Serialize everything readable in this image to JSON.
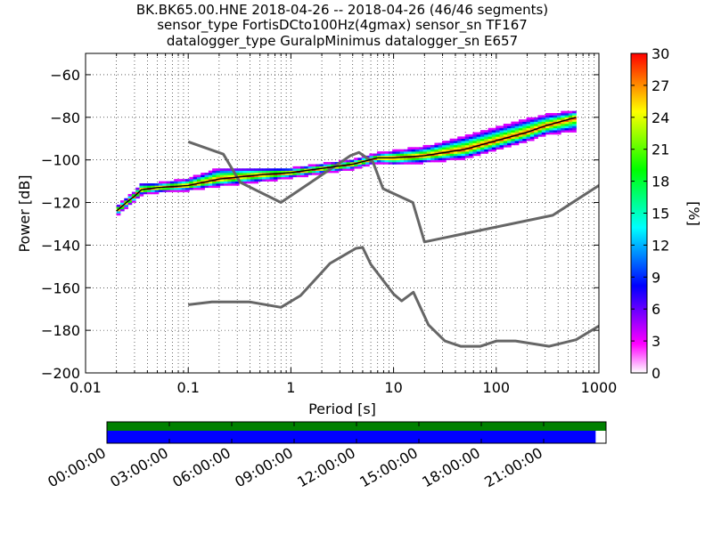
{
  "chart_data": [
    {
      "type": "heatmap",
      "title_lines": [
        "BK.BK65.00.HNE   2018-04-26 -- 2018-04-26  (46/46 segments)",
        "sensor_type FortisDCto100Hz(4gmax) sensor_sn TF167",
        "datalogger_type GuralpMinimus datalogger_sn E657"
      ],
      "xlabel": "Period [s]",
      "ylabel": "Power [dB]",
      "x_scale": "log",
      "xlim": [
        0.01,
        1000
      ],
      "ylim": [
        -200,
        -50
      ],
      "x_ticks": [
        {
          "value": 0.01,
          "label": "0.01"
        },
        {
          "value": 0.1,
          "label": "0.1"
        },
        {
          "value": 1,
          "label": "1"
        },
        {
          "value": 10,
          "label": "10"
        },
        {
          "value": 100,
          "label": "100"
        },
        {
          "value": 1000,
          "label": "1000"
        }
      ],
      "y_ticks": [
        {
          "value": -60,
          "label": "−60"
        },
        {
          "value": -80,
          "label": "−80"
        },
        {
          "value": -100,
          "label": "−100"
        },
        {
          "value": -120,
          "label": "−120"
        },
        {
          "value": -140,
          "label": "−140"
        },
        {
          "value": -160,
          "label": "−160"
        },
        {
          "value": -180,
          "label": "−180"
        },
        {
          "value": -200,
          "label": "−200"
        }
      ],
      "grid": true,
      "colorbar": {
        "label": "[%]",
        "range": [
          0,
          30
        ],
        "ticks": [
          {
            "value": 0,
            "label": "0"
          },
          {
            "value": 3,
            "label": "3"
          },
          {
            "value": 6,
            "label": "6"
          },
          {
            "value": 9,
            "label": "9"
          },
          {
            "value": 12,
            "label": "12"
          },
          {
            "value": 15,
            "label": "15"
          },
          {
            "value": 18,
            "label": "18"
          },
          {
            "value": 21,
            "label": "21"
          },
          {
            "value": 24,
            "label": "24"
          },
          {
            "value": 27,
            "label": "27"
          },
          {
            "value": 30,
            "label": "30"
          }
        ],
        "colors": [
          "#ffffff",
          "#ff00ff",
          "#8000ff",
          "#0000ff",
          "#0080ff",
          "#00ffff",
          "#00ff80",
          "#00ff00",
          "#80ff00",
          "#ffff00",
          "#ff8000",
          "#ff0000"
        ]
      },
      "mode_line": {
        "color": "#000000",
        "x": [
          0.02,
          0.025,
          0.03,
          0.035,
          0.05,
          0.1,
          0.2,
          0.5,
          1,
          2,
          4,
          7,
          10,
          20,
          50,
          100,
          200,
          300,
          600
        ],
        "y": [
          -124,
          -120,
          -117,
          -114,
          -113,
          -112,
          -109,
          -107,
          -106,
          -104,
          -102,
          -99,
          -99,
          -98,
          -95,
          -91,
          -87,
          -84,
          -80
        ]
      },
      "band": {
        "x": [
          0.02,
          0.025,
          0.03,
          0.035,
          0.05,
          0.1,
          0.2,
          0.5,
          1,
          2,
          4,
          7,
          10,
          20,
          50,
          100,
          200,
          300,
          600
        ],
        "lower": [
          -126,
          -122,
          -119,
          -116,
          -115,
          -114,
          -112,
          -110,
          -108,
          -106,
          -104,
          -101,
          -102,
          -101,
          -99,
          -95,
          -91,
          -88,
          -86
        ],
        "upper": [
          -122,
          -118,
          -115,
          -111,
          -111,
          -109,
          -104,
          -104,
          -104,
          -102,
          -100,
          -97,
          -96,
          -94,
          -89,
          -85,
          -81,
          -79,
          -77
        ]
      },
      "reference_curves": [
        {
          "color": "#666666",
          "x": [
            0.1,
            0.17,
            0.4,
            0.8,
            1.24,
            2.4,
            4.3,
            5,
            6,
            10,
            12,
            15.6,
            21.9,
            31.6,
            45,
            70,
            101,
            154,
            328,
            600,
            1000
          ],
          "y": [
            -168,
            -166.7,
            -166.7,
            -169.2,
            -163.7,
            -148.6,
            -141.5,
            -141.1,
            -149,
            -163,
            -166.2,
            -162.1,
            -177.5,
            -185,
            -187.5,
            -187.5,
            -185,
            -185,
            -187.5,
            -184.4,
            -178
          ]
        },
        {
          "color": "#666666",
          "x": [
            0.1,
            0.22,
            0.32,
            0.8,
            3.8,
            4.6,
            6.3,
            7.9,
            15.4,
            20,
            354.8,
            1000
          ],
          "y": [
            -91.5,
            -97.3,
            -110.5,
            -120,
            -98,
            -96.5,
            -101,
            -113.5,
            -120,
            -138.5,
            -126,
            -112
          ]
        }
      ]
    },
    {
      "type": "timeline",
      "x_ticks": [
        {
          "hour": 0,
          "label": "00:00:00"
        },
        {
          "hour": 3,
          "label": "03:00:00"
        },
        {
          "hour": 6,
          "label": "06:00:00"
        },
        {
          "hour": 9,
          "label": "09:00:00"
        },
        {
          "hour": 12,
          "label": "12:00:00"
        },
        {
          "hour": 15,
          "label": "15:00:00"
        },
        {
          "hour": 18,
          "label": "18:00:00"
        },
        {
          "hour": 21,
          "label": "21:00:00"
        }
      ],
      "xlim_hours": [
        0,
        24
      ],
      "bars": [
        {
          "color": "#008000",
          "start_hour": 0,
          "end_hour": 24
        },
        {
          "color": "#0000ff",
          "start_hour": 0,
          "end_hour": 23.5
        }
      ]
    }
  ]
}
